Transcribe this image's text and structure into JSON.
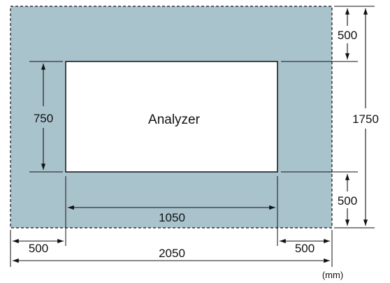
{
  "diagram": {
    "analyzer_label": "Analyzer",
    "unit": "(mm)",
    "dimensions": {
      "top_clearance": "500",
      "bottom_clearance": "500",
      "total_depth": "1750",
      "analyzer_depth": "750",
      "analyzer_width": "1050",
      "left_clearance": "500",
      "right_clearance": "500",
      "total_width": "2050"
    },
    "colors": {
      "clearance_area": "#a9c3cd",
      "analyzer_fill": "#ffffff",
      "lines": "#111111"
    }
  }
}
